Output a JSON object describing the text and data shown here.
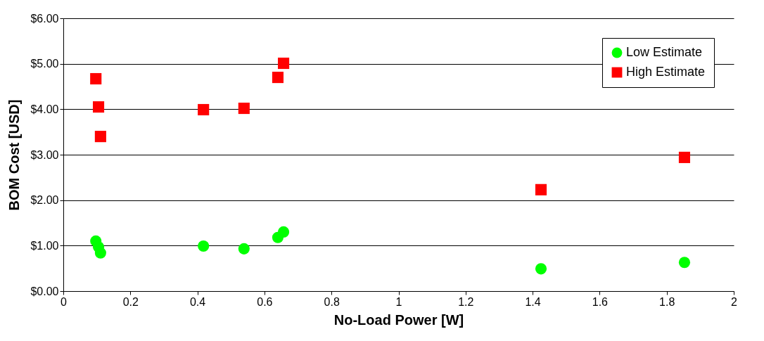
{
  "chart_data": {
    "type": "scatter",
    "xlabel": "No-Load Power [W]",
    "ylabel": "BOM Cost [USD]",
    "xlim": [
      0,
      2
    ],
    "xticks": [
      0,
      0.2,
      0.4,
      0.6,
      0.8,
      1,
      1.2,
      1.4,
      1.6,
      1.8,
      2
    ],
    "ylim": [
      0,
      6
    ],
    "yticks": [
      {
        "value": 0,
        "label": "$0.00"
      },
      {
        "value": 1,
        "label": "$1.00"
      },
      {
        "value": 2,
        "label": "$2.00"
      },
      {
        "value": 3,
        "label": "$3.00"
      },
      {
        "value": 4,
        "label": "$4.00"
      },
      {
        "value": 5,
        "label": "$5.00"
      },
      {
        "value": 6,
        "label": "$6.00"
      }
    ],
    "grid": "y",
    "legend": "top right",
    "series": [
      {
        "name": "Low Estimate",
        "color": "#00ff00",
        "marker": "circle",
        "x": [
          0.097,
          0.105,
          0.111,
          0.418,
          0.539,
          0.64,
          0.657,
          1.425,
          1.853
        ],
        "values": [
          1.1,
          0.97,
          0.84,
          0.99,
          0.93,
          1.18,
          1.3,
          0.49,
          0.63
        ]
      },
      {
        "name": "High Estimate",
        "color": "#ff0000",
        "marker": "square",
        "x": [
          0.097,
          0.105,
          0.111,
          0.418,
          0.539,
          0.64,
          0.657,
          1.425,
          1.853
        ],
        "values": [
          4.67,
          4.05,
          3.4,
          3.99,
          4.02,
          4.7,
          5.01,
          2.23,
          2.94
        ]
      }
    ]
  }
}
